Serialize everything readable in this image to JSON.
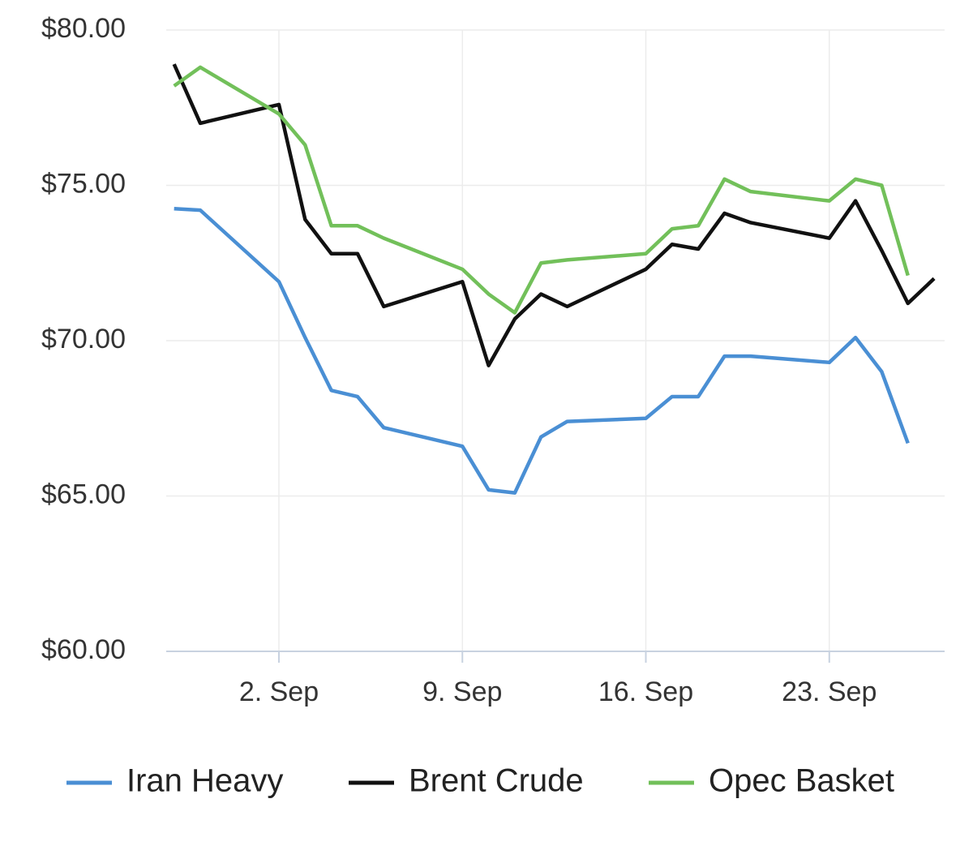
{
  "chart_data": {
    "type": "line",
    "x": [
      241,
      242,
      245,
      246,
      247,
      248,
      249,
      252,
      253,
      254,
      255,
      256,
      259,
      260,
      261,
      262,
      263,
      266,
      267,
      268,
      269,
      270
    ],
    "series": [
      {
        "name": "Iran Heavy",
        "color": "#4a8fd4",
        "values": [
          74.25,
          74.2,
          71.9,
          70.1,
          68.4,
          68.2,
          67.2,
          66.6,
          65.2,
          65.1,
          66.9,
          67.4,
          67.5,
          68.2,
          68.2,
          69.5,
          69.5,
          69.3,
          70.1,
          69.0,
          66.7,
          null
        ]
      },
      {
        "name": "Brent Crude",
        "color": "#111111",
        "values": [
          78.9,
          77.0,
          77.6,
          73.9,
          72.8,
          72.8,
          71.1,
          71.9,
          69.2,
          70.7,
          71.5,
          71.1,
          72.3,
          73.1,
          72.95,
          74.1,
          73.8,
          73.3,
          74.5,
          72.9,
          71.2,
          72.0
        ]
      },
      {
        "name": "Opec Basket",
        "color": "#72c05a",
        "values": [
          78.2,
          78.8,
          77.3,
          76.3,
          73.7,
          73.7,
          73.3,
          72.3,
          71.5,
          70.9,
          72.5,
          72.6,
          72.8,
          73.6,
          73.7,
          75.2,
          74.8,
          74.5,
          75.2,
          75.0,
          72.1,
          null
        ]
      }
    ],
    "xlim": [
      240.7,
      270.4
    ],
    "xticks": [
      {
        "value": 245,
        "label": "2. Sep"
      },
      {
        "value": 252,
        "label": "9. Sep"
      },
      {
        "value": 259,
        "label": "16. Sep"
      },
      {
        "value": 266,
        "label": "23. Sep"
      }
    ],
    "ylim": [
      60,
      80
    ],
    "yticks": [
      {
        "value": 60,
        "label": "$60.00"
      },
      {
        "value": 65,
        "label": "$65.00"
      },
      {
        "value": 70,
        "label": "$70.00"
      },
      {
        "value": 75,
        "label": "$75.00"
      },
      {
        "value": 80,
        "label": "$80.00"
      }
    ],
    "grid": true,
    "legend": "bottom"
  }
}
